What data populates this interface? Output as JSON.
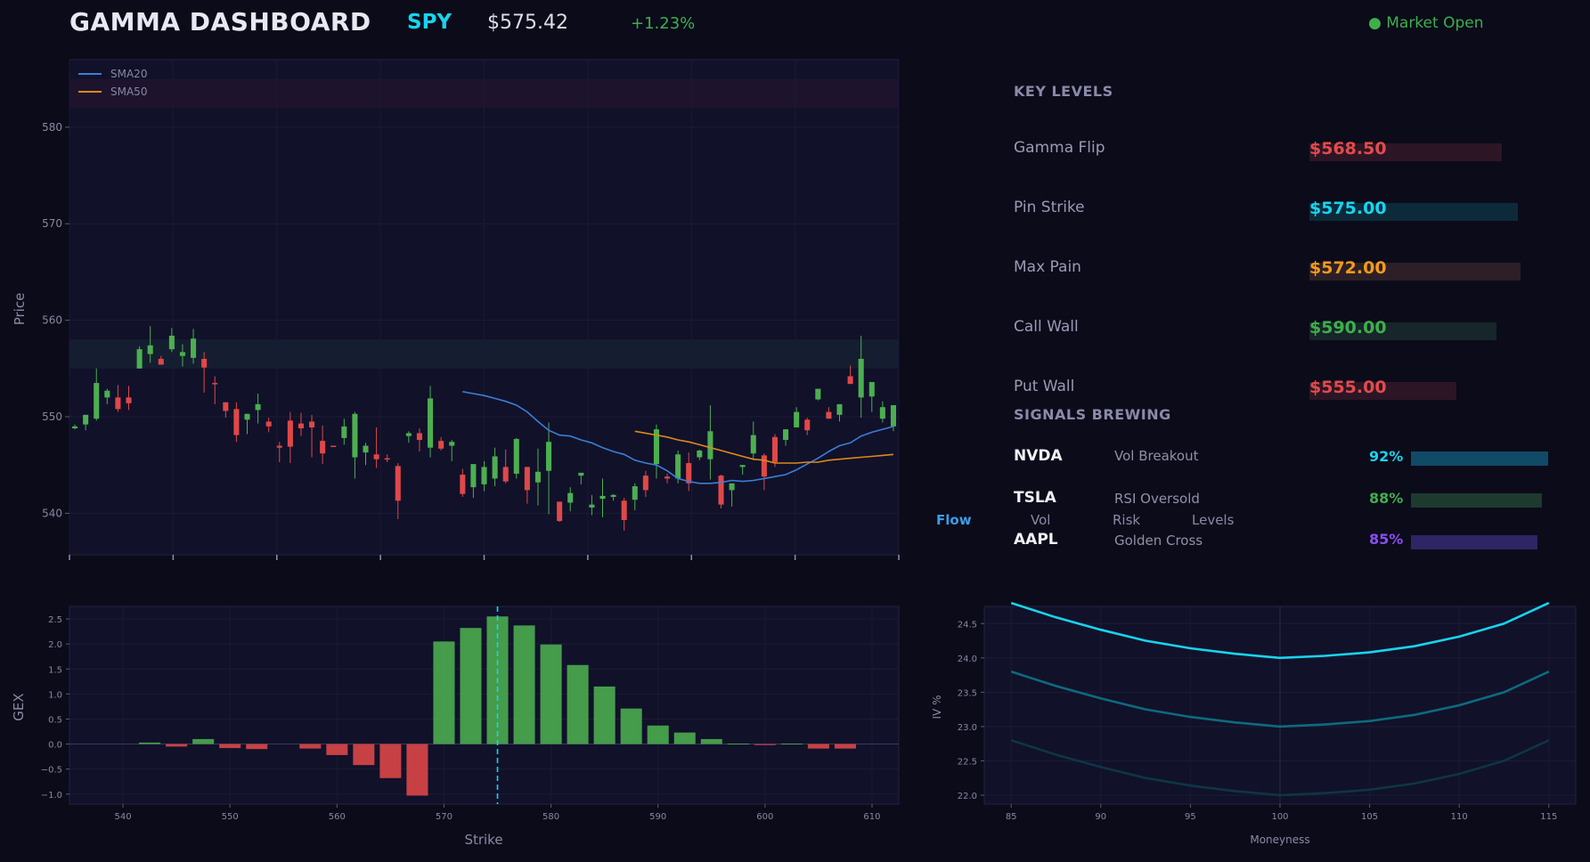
{
  "header": {
    "title": "GAMMA DASHBOARD",
    "symbol": "SPY",
    "price": "$575.42",
    "change": "+1.23%",
    "market_status": "● Market Open"
  },
  "key_levels": {
    "title": "KEY LEVELS",
    "items": [
      {
        "label": "Gamma Flip",
        "value": "$568.50",
        "color": "#e24b4b",
        "bar_color": "#2c1626",
        "bar_fill": 0.72
      },
      {
        "label": "Pin Strike",
        "value": "$575.00",
        "color": "#18d4ee",
        "bar_color": "#0c2a3a",
        "bar_fill": 0.78
      },
      {
        "label": "Max Pain",
        "value": "$572.00",
        "color": "#f29a1d",
        "bar_color": "#2c2026",
        "bar_fill": 0.79
      },
      {
        "label": "Call Wall",
        "value": "$590.00",
        "color": "#3fae4b",
        "bar_color": "#16262a",
        "bar_fill": 0.7
      },
      {
        "label": "Put Wall",
        "value": "$555.00",
        "color": "#e24b4b",
        "bar_color": "#2c1626",
        "bar_fill": 0.55
      }
    ]
  },
  "signals": {
    "title": "SIGNALS BREWING",
    "items": [
      {
        "ticker": "NVDA",
        "name": "Vol Breakout",
        "pct": "92%",
        "pct_value": 92,
        "color": "#18d4ee",
        "bar_color": "#0f4a66"
      },
      {
        "ticker": "TSLA",
        "name": "RSI Oversold",
        "pct": "88%",
        "pct_value": 88,
        "color": "#3fae4b",
        "bar_color": "#1e3a2e"
      },
      {
        "ticker": "AAPL",
        "name": "Golden Cross",
        "pct": "85%",
        "pct_value": 85,
        "color": "#8b4df2",
        "bar_color": "#2e2466"
      }
    ]
  },
  "tabs": [
    "Flow",
    "Vol",
    "Risk",
    "Levels"
  ],
  "active_tab": "Flow",
  "colors": {
    "up": "#4caf50",
    "down": "#e04848",
    "sma20": "#3a7fd5",
    "sma50": "#d98a1a",
    "pin_line": "#18d4ee",
    "iv_front": "#18d4ee"
  },
  "chart_data": [
    {
      "type": "candlestick",
      "ylabel": "Price",
      "ylim": [
        535.7,
        587
      ],
      "yticks": [
        "540",
        "550",
        "560",
        "570",
        "580"
      ],
      "legend": [
        "SMA20",
        "SMA50"
      ],
      "legend_position": "top-left",
      "resistance_band": [
        582,
        585
      ],
      "support_band": [
        555,
        558
      ],
      "candles": [
        [
          548.8,
          549.2,
          548.7,
          549.0
        ],
        [
          549.2,
          550.2,
          548.6,
          550.2
        ],
        [
          549.8,
          555.0,
          549.6,
          553.5
        ],
        [
          552.0,
          552.9,
          551.3,
          552.7
        ],
        [
          552.0,
          553.3,
          550.5,
          550.8
        ],
        [
          552.0,
          553.2,
          550.7,
          551.4
        ],
        [
          555.0,
          557.3,
          555.0,
          557.0
        ],
        [
          556.5,
          559.4,
          555.6,
          557.4
        ],
        [
          556.0,
          556.3,
          555.4,
          555.4
        ],
        [
          557.0,
          559.2,
          556.7,
          558.4
        ],
        [
          556.3,
          557.5,
          555.2,
          556.7
        ],
        [
          556.1,
          559.1,
          555.5,
          558.1
        ],
        [
          556.0,
          556.7,
          552.5,
          555.1
        ],
        [
          553.5,
          554.2,
          551.3,
          553.4
        ],
        [
          551.5,
          551.5,
          549.9,
          550.6
        ],
        [
          550.8,
          551.5,
          547.4,
          548.1
        ],
        [
          549.7,
          550.3,
          548.2,
          550.3
        ],
        [
          550.7,
          552.4,
          549.3,
          551.3
        ],
        [
          549.5,
          549.9,
          548.4,
          549.0
        ],
        [
          547.0,
          547.4,
          545.3,
          546.8
        ],
        [
          549.6,
          550.5,
          545.2,
          546.9
        ],
        [
          549.3,
          550.4,
          548.0,
          548.8
        ],
        [
          549.5,
          550.2,
          545.8,
          548.9
        ],
        [
          547.5,
          549.1,
          545.1,
          546.2
        ],
        [
          547.0,
          547.0,
          546.9,
          546.9
        ],
        [
          547.8,
          549.8,
          547.1,
          549.0
        ],
        [
          545.8,
          550.5,
          543.6,
          550.3
        ],
        [
          546.3,
          547.3,
          545.0,
          547.0
        ],
        [
          546.1,
          548.9,
          544.7,
          545.6
        ],
        [
          545.7,
          546.1,
          545.3,
          545.6
        ],
        [
          544.9,
          545.2,
          539.4,
          541.3
        ],
        [
          548.0,
          548.5,
          547.3,
          548.3
        ],
        [
          548.3,
          548.8,
          546.4,
          547.6
        ],
        [
          546.8,
          553.2,
          545.8,
          551.9
        ],
        [
          547.5,
          547.9,
          546.5,
          546.7
        ],
        [
          547.0,
          547.6,
          545.4,
          547.4
        ],
        [
          544.0,
          544.6,
          541.7,
          542.0
        ],
        [
          542.7,
          544.8,
          541.6,
          545.1
        ],
        [
          543.0,
          545.4,
          542.3,
          544.8
        ],
        [
          543.6,
          546.8,
          542.8,
          545.9
        ],
        [
          544.8,
          546.6,
          543.1,
          543.3
        ],
        [
          544.1,
          547.8,
          543.6,
          547.7
        ],
        [
          544.8,
          544.8,
          541.0,
          542.4
        ],
        [
          543.2,
          546.7,
          540.8,
          544.3
        ],
        [
          544.4,
          549.4,
          539.9,
          547.4
        ],
        [
          541.2,
          541.2,
          539.1,
          539.2
        ],
        [
          541.1,
          542.7,
          540.2,
          542.1
        ],
        [
          543.9,
          544.0,
          543.0,
          544.2
        ],
        [
          540.6,
          541.9,
          539.8,
          540.9
        ],
        [
          541.5,
          543.6,
          539.6,
          541.8
        ],
        [
          541.7,
          542.0,
          541.3,
          541.9
        ],
        [
          541.3,
          541.6,
          538.2,
          539.3
        ],
        [
          541.4,
          543.1,
          540.3,
          542.8
        ],
        [
          543.9,
          544.4,
          541.7,
          542.4
        ],
        [
          545.1,
          549.2,
          543.6,
          548.7
        ],
        [
          543.8,
          544.1,
          543.1,
          543.6
        ],
        [
          543.6,
          546.5,
          543.1,
          546.1
        ],
        [
          545.2,
          546.3,
          542.3,
          543.1
        ],
        [
          545.8,
          546.6,
          545.5,
          546.5
        ],
        [
          545.6,
          551.2,
          543.5,
          548.5
        ],
        [
          543.9,
          544.0,
          540.5,
          540.9
        ],
        [
          542.4,
          543.0,
          540.7,
          543.1
        ],
        [
          544.8,
          545.0,
          544.0,
          545.0
        ],
        [
          546.2,
          549.5,
          545.5,
          548.1
        ],
        [
          546.0,
          546.2,
          542.4,
          543.8
        ],
        [
          547.9,
          548.2,
          544.8,
          545.3
        ],
        [
          547.6,
          548.7,
          547.0,
          548.7
        ],
        [
          548.9,
          551.0,
          548.9,
          550.5
        ],
        [
          549.7,
          549.9,
          548.1,
          548.6
        ],
        [
          551.8,
          552.6,
          551.7,
          552.9
        ],
        [
          550.5,
          551.0,
          549.8,
          549.8
        ],
        [
          550.2,
          551.3,
          549.5,
          551.3
        ],
        [
          554.2,
          555.3,
          553.5,
          553.4
        ],
        [
          552.0,
          558.4,
          549.9,
          556.0
        ],
        [
          552.1,
          553.4,
          550.5,
          553.6
        ],
        [
          549.8,
          551.6,
          549.4,
          551.0
        ],
        [
          549.0,
          551.2,
          548.5,
          551.2
        ]
      ],
      "sma20": [
        552.6,
        552.4,
        552.2,
        551.9,
        551.6,
        551.2,
        550.5,
        549.5,
        548.6,
        548.1,
        548.0,
        547.6,
        547.3,
        546.8,
        546.4,
        546.1,
        545.5,
        545.2,
        545.0,
        544.4,
        543.6,
        543.3,
        543.1,
        543.1,
        543.2,
        543.4,
        543.3,
        543.4,
        543.6,
        543.8,
        544.0,
        544.5,
        545.1,
        545.7,
        546.4,
        547.0,
        547.3,
        548.0,
        548.4,
        548.7,
        549.0
      ],
      "sma50": [
        548.5,
        548.3,
        548.1,
        547.9,
        547.6,
        547.4,
        547.1,
        546.8,
        546.5,
        546.2,
        545.9,
        545.6,
        545.5,
        545.2,
        545.2,
        545.2,
        545.3,
        545.3,
        545.5,
        545.6,
        545.7,
        545.8,
        545.9,
        546.0,
        546.1
      ]
    },
    {
      "type": "bar",
      "xlabel": "Strike",
      "ylabel": "GEX",
      "xlim": [
        535,
        612.5
      ],
      "ylim": [
        -1.2,
        2.75
      ],
      "xticks": [
        "540",
        "550",
        "560",
        "570",
        "580",
        "590",
        "600",
        "610"
      ],
      "yticks": [
        "2.5",
        "2.0",
        "1.5",
        "1.0",
        "0.5",
        "0.0",
        "−0.5",
        "−1.0"
      ],
      "x": [
        540,
        542.5,
        545,
        547.5,
        550,
        552.5,
        555,
        557.5,
        560,
        562.5,
        565,
        567.5,
        570,
        572.5,
        575,
        577.5,
        580,
        582.5,
        585,
        587.5,
        590,
        592.5,
        595,
        597.5,
        600,
        602.5,
        605,
        607.5
      ],
      "values": [
        0,
        0.03,
        -0.05,
        0.1,
        -0.08,
        -0.1,
        0,
        -0.09,
        -0.22,
        -0.42,
        -0.68,
        -1.03,
        2.05,
        2.32,
        2.55,
        2.37,
        1.99,
        1.58,
        1.15,
        0.71,
        0.37,
        0.23,
        0.1,
        0.01,
        -0.02,
        0.01,
        -0.09,
        -0.09
      ],
      "pin_strike": 575
    },
    {
      "type": "line",
      "xlabel": "Moneyness",
      "ylabel": "IV %",
      "xlim": [
        83.5,
        116.5
      ],
      "ylim": [
        21.87,
        24.75
      ],
      "xticks": [
        "85",
        "90",
        "95",
        "100",
        "105",
        "110",
        "115"
      ],
      "yticks": [
        "24.5",
        "24.0",
        "23.5",
        "23.0",
        "22.5",
        "22.0"
      ],
      "x": [
        85,
        87.5,
        90,
        92.5,
        95,
        97.5,
        100,
        102.5,
        105,
        107.5,
        110,
        112.5,
        115
      ],
      "series": [
        {
          "values": [
            24.8,
            24.59,
            24.41,
            24.25,
            24.14,
            24.06,
            24.0,
            24.03,
            24.08,
            24.17,
            24.31,
            24.5,
            24.8
          ],
          "color": "#18d4ee",
          "opacity": 1
        },
        {
          "values": [
            23.8,
            23.59,
            23.41,
            23.25,
            23.14,
            23.06,
            23.0,
            23.03,
            23.08,
            23.17,
            23.31,
            23.5,
            23.8
          ],
          "color": "#0e7486",
          "opacity": 0.9
        },
        {
          "values": [
            22.8,
            22.59,
            22.41,
            22.25,
            22.14,
            22.06,
            22.0,
            22.03,
            22.08,
            22.17,
            22.31,
            22.5,
            22.8
          ],
          "color": "#0f3a48",
          "opacity": 0.9
        }
      ]
    }
  ]
}
